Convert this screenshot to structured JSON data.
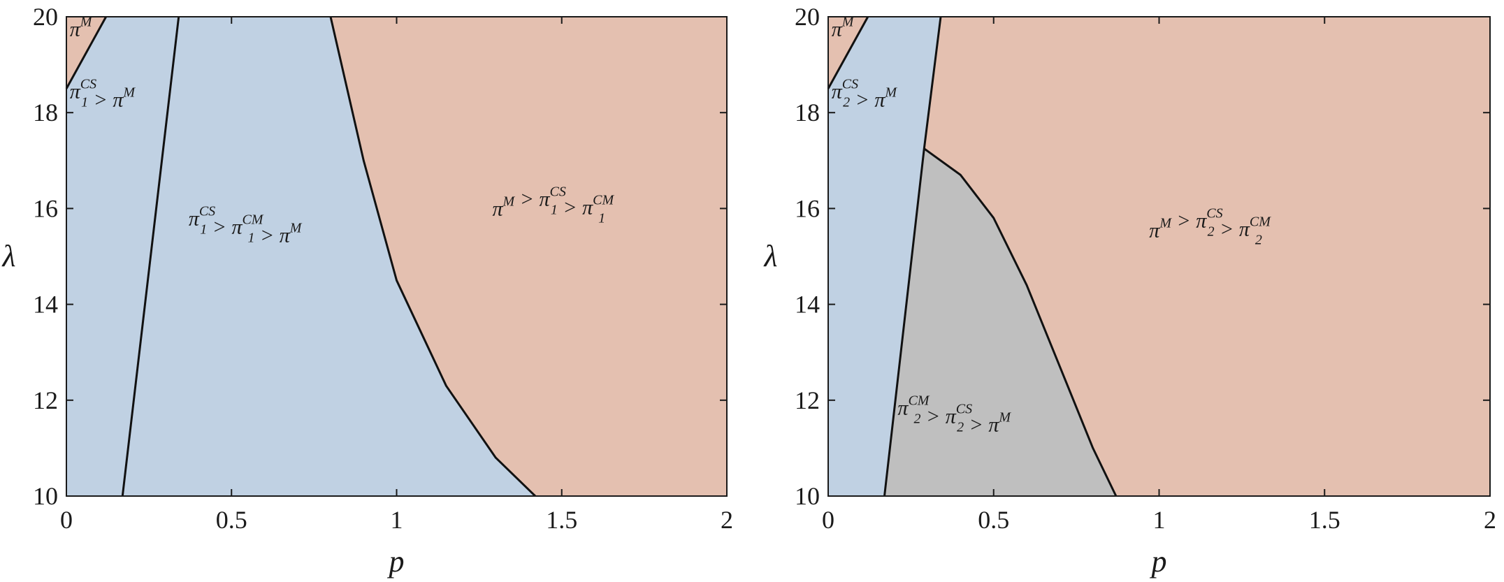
{
  "figure": {
    "panels": [
      {
        "x_label": "p",
        "y_label": "λ"
      },
      {
        "x_label": "p",
        "y_label": "λ"
      }
    ]
  },
  "colors": {
    "blue_region": "#c0d1e3",
    "orange_region": "#e4c0b0",
    "gray_region": "#bfbfbf",
    "boundary": "#111111"
  },
  "chart_data": [
    {
      "type": "area",
      "title": "",
      "xlabel": "p",
      "ylabel": "λ",
      "xlim": [
        0,
        2
      ],
      "ylim": [
        10,
        20
      ],
      "x_ticks": [
        "0",
        "0.5",
        "1",
        "1.5",
        "2"
      ],
      "y_ticks": [
        "10",
        "12",
        "14",
        "16",
        "18",
        "20"
      ],
      "grid": false,
      "legend": "none",
      "regions": [
        {
          "label_parts": [
            [
              "π",
              "",
              "M"
            ]
          ],
          "label_text": "π^M",
          "color": "orange",
          "label_at": [
            0.01,
            19.6
          ],
          "polygon": [
            [
              0,
              18.5
            ],
            [
              0.12,
              20
            ],
            [
              0,
              20
            ]
          ]
        },
        {
          "label_parts": [
            [
              "π",
              "1",
              "CS"
            ],
            [
              " > ",
              "",
              ""
            ],
            [
              "π",
              "",
              "M"
            ]
          ],
          "label_text": "π_1^CS > π^M",
          "color": "blue",
          "label_at": [
            0.01,
            18.3
          ],
          "polygon": [
            [
              0,
              10
            ],
            [
              0.17,
              10
            ],
            [
              0.34,
              20
            ],
            [
              0.12,
              20
            ],
            [
              0,
              18.5
            ]
          ]
        },
        {
          "label_parts": [
            [
              "π",
              "1",
              "CS"
            ],
            [
              " > ",
              "",
              ""
            ],
            [
              "π",
              "1",
              "CM"
            ],
            [
              " > ",
              "",
              ""
            ],
            [
              "π",
              "",
              "M"
            ]
          ],
          "label_text": "π_1^CS > π_1^CM > π^M",
          "color": "blue",
          "label_at": [
            0.37,
            15.65
          ],
          "polygon": [
            [
              0.17,
              10
            ],
            [
              1.42,
              10
            ],
            [
              1.3,
              10.8
            ],
            [
              1.15,
              12.3
            ],
            [
              1.0,
              14.5
            ],
            [
              0.9,
              17.0
            ],
            [
              0.8,
              20
            ],
            [
              0.34,
              20
            ]
          ]
        },
        {
          "label_parts": [
            [
              "π",
              "",
              "M"
            ],
            [
              " > ",
              "",
              ""
            ],
            [
              "π",
              "1",
              "CS"
            ],
            [
              " > ",
              "",
              ""
            ],
            [
              "π",
              "1",
              "CM"
            ]
          ],
          "label_text": "π^M > π_1^CS > π_1^CM",
          "color": "orange",
          "label_at": [
            1.29,
            15.85
          ],
          "polygon": [
            [
              1.42,
              10
            ],
            [
              2,
              10
            ],
            [
              2,
              20
            ],
            [
              0.8,
              20
            ],
            [
              0.9,
              17.0
            ],
            [
              1.0,
              14.5
            ],
            [
              1.15,
              12.3
            ],
            [
              1.3,
              10.8
            ]
          ]
        }
      ],
      "boundaries": [
        [
          [
            0,
            18.5
          ],
          [
            0.12,
            20
          ]
        ],
        [
          [
            0.17,
            10
          ],
          [
            0.34,
            20
          ]
        ],
        [
          [
            0.8,
            20
          ],
          [
            0.9,
            17.0
          ],
          [
            1.0,
            14.5
          ],
          [
            1.15,
            12.3
          ],
          [
            1.3,
            10.8
          ],
          [
            1.42,
            10
          ]
        ]
      ]
    },
    {
      "type": "area",
      "title": "",
      "xlabel": "p",
      "ylabel": "λ",
      "xlim": [
        0,
        2
      ],
      "ylim": [
        10,
        20
      ],
      "x_ticks": [
        "0",
        "0.5",
        "1",
        "1.5",
        "2"
      ],
      "y_ticks": [
        "10",
        "12",
        "14",
        "16",
        "18",
        "20"
      ],
      "grid": false,
      "legend": "none",
      "regions": [
        {
          "label_parts": [
            [
              "π",
              "",
              "M"
            ]
          ],
          "label_text": "π^M",
          "color": "orange",
          "label_at": [
            0.01,
            19.6
          ],
          "polygon": [
            [
              0,
              18.5
            ],
            [
              0.12,
              20
            ],
            [
              0,
              20
            ]
          ]
        },
        {
          "label_parts": [
            [
              "π",
              "2",
              "CS"
            ],
            [
              " > ",
              "",
              ""
            ],
            [
              "π",
              "",
              "M"
            ]
          ],
          "label_text": "π_2^CS > π^M",
          "color": "blue",
          "label_at": [
            0.01,
            18.3
          ],
          "polygon": [
            [
              0,
              10
            ],
            [
              0.17,
              10
            ],
            [
              0.29,
              17.25
            ],
            [
              0.34,
              20
            ],
            [
              0.12,
              20
            ],
            [
              0,
              18.5
            ]
          ]
        },
        {
          "label_parts": [
            [
              "π",
              "2",
              "CM"
            ],
            [
              " > ",
              "",
              ""
            ],
            [
              "π",
              "2",
              "CS"
            ],
            [
              " > ",
              "",
              ""
            ],
            [
              "π",
              "",
              "M"
            ]
          ],
          "label_text": "π_2^CM > π_2^CS > π^M",
          "color": "gray",
          "label_at": [
            0.21,
            11.7
          ],
          "polygon": [
            [
              0.17,
              10
            ],
            [
              0.87,
              10
            ],
            [
              0.8,
              11.0
            ],
            [
              0.7,
              12.7
            ],
            [
              0.6,
              14.4
            ],
            [
              0.5,
              15.8
            ],
            [
              0.4,
              16.7
            ],
            [
              0.29,
              17.25
            ]
          ]
        },
        {
          "label_parts": [
            [
              "π",
              "",
              "M"
            ],
            [
              " > ",
              "",
              ""
            ],
            [
              "π",
              "2",
              "CS"
            ],
            [
              " > ",
              "",
              ""
            ],
            [
              "π",
              "2",
              "CM"
            ]
          ],
          "label_text": "π^M > π_2^CS > π_2^CM",
          "color": "orange",
          "label_at": [
            0.97,
            15.4
          ],
          "polygon": [
            [
              0.87,
              10
            ],
            [
              2,
              10
            ],
            [
              2,
              20
            ],
            [
              0.34,
              20
            ],
            [
              0.29,
              17.25
            ],
            [
              0.4,
              16.7
            ],
            [
              0.5,
              15.8
            ],
            [
              0.6,
              14.4
            ],
            [
              0.7,
              12.7
            ],
            [
              0.8,
              11.0
            ]
          ]
        }
      ],
      "boundaries": [
        [
          [
            0,
            18.5
          ],
          [
            0.12,
            20
          ]
        ],
        [
          [
            0.17,
            10
          ],
          [
            0.29,
            17.25
          ],
          [
            0.34,
            20
          ]
        ],
        [
          [
            0.29,
            17.25
          ],
          [
            0.4,
            16.7
          ],
          [
            0.5,
            15.8
          ],
          [
            0.6,
            14.4
          ],
          [
            0.7,
            12.7
          ],
          [
            0.8,
            11.0
          ],
          [
            0.87,
            10
          ]
        ]
      ]
    }
  ]
}
